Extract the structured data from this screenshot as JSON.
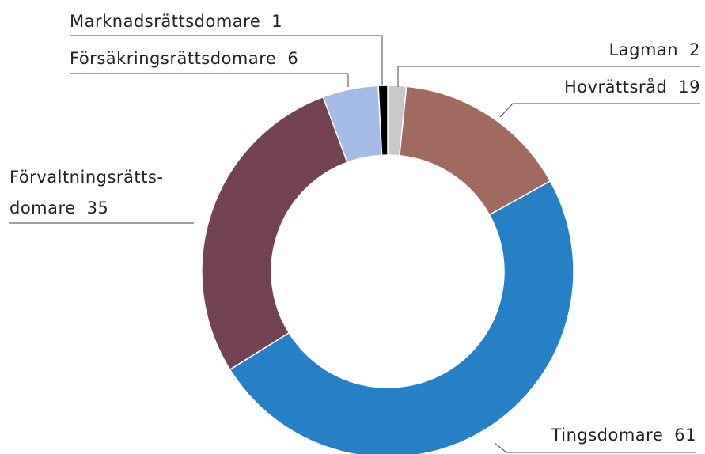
{
  "chart_data": {
    "type": "donut",
    "categories": [
      "Lagman",
      "Hovrättsråd",
      "Tingsdomare",
      "Förvaltningsrätts-\ndomare",
      "Försäkringsrättsdomare",
      "Marknadsrättsdomare"
    ],
    "values": [
      2,
      19,
      61,
      35,
      6,
      1
    ],
    "colors": [
      "#c8c8c8",
      "#a06a60",
      "#2680c6",
      "#734352",
      "#a5bde6",
      "#000000"
    ]
  }
}
